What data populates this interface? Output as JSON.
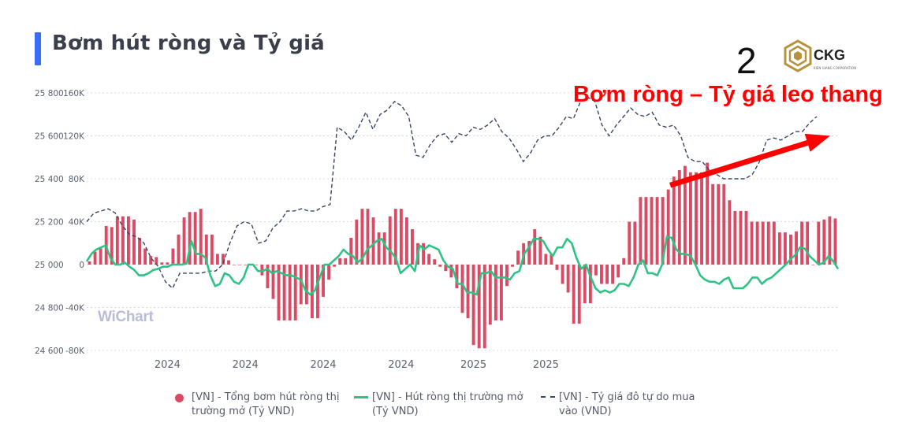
{
  "title": "Bơm hút ròng và Tỷ giá",
  "page_number": "2",
  "logo": {
    "name": "CKG",
    "tagline": "KIEN GIANG CORPORATION"
  },
  "watermark": "WiChart",
  "colors": {
    "bars": "#d94b64",
    "net_line": "#2ec384",
    "fx_line": "#394566",
    "arrow": "#ff0000",
    "title_accent": "#3b6cf6"
  },
  "chart_data": {
    "type": "bar",
    "title": "Bơm hút ròng và Tỷ giá",
    "annotation": "Bơm ròng – Tỷ giá leo thang",
    "annotation_arrow": {
      "from": {
        "x_index": 73,
        "y": 25370
      },
      "to": {
        "x_index": 93,
        "y": 25600
      },
      "axis": "fx"
    },
    "x_tick_labels": [
      {
        "index": 14,
        "label": "2024"
      },
      {
        "index": 28,
        "label": "2024"
      },
      {
        "index": 42,
        "label": "2024"
      },
      {
        "index": 56,
        "label": "2024"
      },
      {
        "index": 69,
        "label": "2025"
      },
      {
        "index": 82,
        "label": "2025"
      }
    ],
    "y_left": {
      "ticks": [
        25800,
        25600,
        25400,
        25200,
        25000,
        24800,
        24600
      ],
      "labels": [
        "25 800",
        "25 600",
        "25 400",
        "25 200",
        "25 000",
        "24 800",
        "24 600"
      ],
      "range": [
        24600,
        25800
      ]
    },
    "y_right": {
      "ticks": [
        160,
        120,
        80,
        40,
        0,
        -40,
        -80
      ],
      "labels": [
        "160K",
        "120K",
        "80K",
        "40K",
        "0",
        "-40K",
        "-80K"
      ],
      "range": [
        -80,
        160
      ],
      "unit": "K"
    },
    "grid": true,
    "legend_position": "bottom",
    "series": [
      {
        "name": "[VN] - Tổng bơm hút ròng thị trường mở (Tỷ VND)",
        "type": "bar",
        "axis": "right",
        "values": [
          3,
          12,
          15,
          36,
          35,
          45,
          45,
          45,
          42,
          25,
          15,
          8,
          7,
          2,
          2,
          15,
          28,
          44,
          49,
          49,
          52,
          28,
          28,
          10,
          10,
          4,
          0,
          0,
          0,
          0,
          0,
          -10,
          -22,
          -32,
          -52,
          -52,
          -52,
          -52,
          -37,
          -37,
          -50,
          -50,
          -30,
          -14,
          -2,
          6,
          6,
          25,
          42,
          52,
          52,
          44,
          30,
          30,
          45,
          52,
          52,
          44,
          33,
          20,
          20,
          10,
          5,
          -2,
          -6,
          -12,
          -22,
          -45,
          -50,
          -75,
          -78,
          -78,
          -56,
          -52,
          -52,
          -20,
          -2,
          13,
          20,
          22,
          33,
          26,
          10,
          10,
          -5,
          -18,
          -26,
          -55,
          -55,
          -36,
          -36,
          -10,
          -18,
          -18,
          -18,
          -12,
          6,
          40,
          40,
          63,
          63,
          63,
          63,
          63,
          70,
          82,
          88,
          92,
          86,
          86,
          86,
          95,
          75,
          75,
          75,
          60,
          50,
          50,
          50,
          40,
          40,
          40,
          40,
          40,
          30,
          30,
          28,
          31,
          40,
          40,
          0,
          40,
          42,
          45,
          43
        ]
      },
      {
        "name": "[VN] - Hút ròng thị trường mở (Tỷ VND)",
        "type": "line",
        "axis": "right",
        "values": [
          3,
          10,
          14,
          16,
          18,
          6,
          0,
          0,
          2,
          -2,
          -5,
          -10,
          -10,
          -8,
          -5,
          -4,
          -2,
          -2,
          0,
          0,
          0,
          1,
          22,
          10,
          10,
          6,
          -10,
          -20,
          -18,
          -8,
          -10,
          -16,
          -18,
          -12,
          0,
          0,
          -6,
          -6,
          -4,
          -8,
          -6,
          -8,
          -10,
          -10,
          -12,
          -14,
          -24,
          -28,
          -24,
          -12,
          0,
          0,
          4,
          8,
          14,
          10,
          8,
          2,
          6,
          14,
          18,
          22,
          24,
          16,
          12,
          6,
          -8,
          -4,
          0,
          -6,
          18,
          14,
          18,
          16,
          14,
          4,
          -2,
          -4,
          -18,
          -18,
          -26,
          -26,
          -28,
          -8,
          -8,
          -6,
          -12,
          -12,
          -12,
          -14,
          -8,
          -6,
          10,
          16,
          24,
          24,
          22,
          14,
          8,
          16,
          16,
          24,
          20,
          6,
          -4,
          0,
          -12,
          -22,
          -26,
          -24,
          -26,
          -24,
          -18,
          -18,
          -20,
          -12,
          0,
          4,
          -8,
          -8,
          -10,
          0,
          26,
          25,
          14,
          10,
          10,
          8,
          0,
          -10,
          -14,
          -16,
          -16,
          -18,
          -14,
          -12,
          -22,
          -22,
          -22,
          -18,
          -12,
          -12,
          -18,
          -14,
          -12,
          -8,
          -4,
          0,
          5,
          9,
          16,
          15,
          8,
          4,
          0,
          2,
          8,
          3,
          -4
        ]
      },
      {
        "name": "[VN] - Tỷ giá đô tự do mua vào (VND)",
        "type": "line",
        "axis": "left",
        "dashed": true,
        "values": [
          25200,
          25240,
          25250,
          25260,
          25240,
          25180,
          25140,
          25130,
          25100,
          25030,
          24990,
          24920,
          24890,
          24960,
          24960,
          24960,
          24960,
          24970,
          24970,
          25000,
          25100,
          25180,
          25200,
          25190,
          25100,
          25110,
          25170,
          25200,
          25250,
          25250,
          25260,
          25250,
          25250,
          25270,
          25280,
          25640,
          25620,
          25580,
          25640,
          25710,
          25630,
          25700,
          25720,
          25760,
          25740,
          25690,
          25510,
          25500,
          25560,
          25600,
          25610,
          25570,
          25610,
          25600,
          25640,
          25630,
          25650,
          25680,
          25620,
          25590,
          25540,
          25480,
          25520,
          25580,
          25600,
          25600,
          25640,
          25690,
          25680,
          25760,
          25780,
          25760,
          25650,
          25600,
          25650,
          25690,
          25730,
          25700,
          25690,
          25710,
          25650,
          25640,
          25650,
          25600,
          25500,
          25480,
          25480,
          25440,
          25420,
          25400,
          25400,
          25400,
          25400,
          25420,
          25480,
          25580,
          25590,
          25580,
          25600,
          25620,
          25620,
          25660,
          25690
        ]
      }
    ],
    "xlabel": "",
    "ylabel": ""
  }
}
